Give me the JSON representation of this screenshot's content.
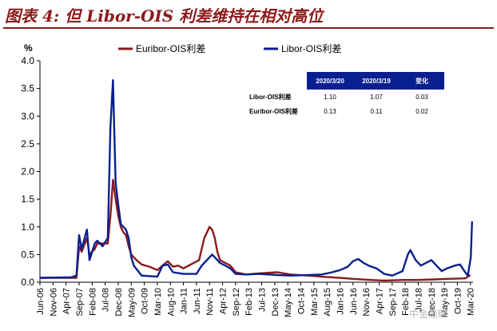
{
  "header": {
    "title": "图表 4:  但 Libor-OIS 利差维持在相对高位"
  },
  "watermark": "中金策略",
  "table": {
    "headers": [
      "",
      "2020/3/20",
      "2020/3/19",
      "变化"
    ],
    "rows": [
      {
        "label": "Libor-OIS利差",
        "values": [
          "1.10",
          "1.07",
          "0.03"
        ]
      },
      {
        "label": "Euribor-OIS利差",
        "values": [
          "0.13",
          "0.11",
          "0.02"
        ]
      }
    ]
  },
  "chart_data": {
    "type": "line",
    "unit_label": "%",
    "ylim": [
      0,
      4
    ],
    "yticks": [
      "0.0",
      "0.5",
      "1.0",
      "1.5",
      "2.0",
      "2.5",
      "3.0",
      "3.5",
      "4.0"
    ],
    "xticks": [
      "Jun-06",
      "Nov-06",
      "Apr-07",
      "Sep-07",
      "Feb-08",
      "Jul-08",
      "Dec-08",
      "May-09",
      "Oct-09",
      "Mar-10",
      "Aug-10",
      "Jan-11",
      "Jun-11",
      "Nov-11",
      "Apr-12",
      "Sep-12",
      "Feb-13",
      "Jul-13",
      "Dec-13",
      "May-14",
      "Oct-14",
      "Mar-15",
      "Aug-15",
      "Jan-16",
      "Jun-16",
      "Nov-16",
      "Apr-17",
      "Sep-17",
      "Feb-18",
      "Jul-18",
      "Dec-18",
      "May-19",
      "Oct-19",
      "Mar-20"
    ],
    "legend_position": "top",
    "grid": false,
    "series": [
      {
        "name": "Euribor-OIS利差",
        "color": "#8b1a1a",
        "points": [
          [
            "2006-06",
            0.08
          ],
          [
            "2007-06",
            0.08
          ],
          [
            "2007-08",
            0.08
          ],
          [
            "2007-09",
            0.65
          ],
          [
            "2007-10",
            0.55
          ],
          [
            "2007-12",
            0.8
          ],
          [
            "2008-01",
            0.5
          ],
          [
            "2008-03",
            0.6
          ],
          [
            "2008-04",
            0.7
          ],
          [
            "2008-06",
            0.7
          ],
          [
            "2008-08",
            0.7
          ],
          [
            "2008-09",
            1.2
          ],
          [
            "2008-10",
            1.85
          ],
          [
            "2008-11",
            1.5
          ],
          [
            "2008-12",
            1.2
          ],
          [
            "2009-01",
            1.0
          ],
          [
            "2009-02",
            0.9
          ],
          [
            "2009-03",
            0.85
          ],
          [
            "2009-04",
            0.65
          ],
          [
            "2009-05",
            0.5
          ],
          [
            "2009-07",
            0.4
          ],
          [
            "2009-09",
            0.32
          ],
          [
            "2009-12",
            0.28
          ],
          [
            "2010-03",
            0.22
          ],
          [
            "2010-05",
            0.3
          ],
          [
            "2010-07",
            0.38
          ],
          [
            "2010-09",
            0.28
          ],
          [
            "2010-11",
            0.3
          ],
          [
            "2011-01",
            0.25
          ],
          [
            "2011-03",
            0.3
          ],
          [
            "2011-05",
            0.35
          ],
          [
            "2011-07",
            0.4
          ],
          [
            "2011-08",
            0.6
          ],
          [
            "2011-09",
            0.8
          ],
          [
            "2011-10",
            0.9
          ],
          [
            "2011-11",
            1.0
          ],
          [
            "2011-12",
            0.95
          ],
          [
            "2012-01",
            0.8
          ],
          [
            "2012-02",
            0.55
          ],
          [
            "2012-03",
            0.4
          ],
          [
            "2012-05",
            0.35
          ],
          [
            "2012-07",
            0.3
          ],
          [
            "2012-09",
            0.18
          ],
          [
            "2013-01",
            0.14
          ],
          [
            "2013-06",
            0.16
          ],
          [
            "2014-01",
            0.18
          ],
          [
            "2014-06",
            0.14
          ],
          [
            "2015-01",
            0.12
          ],
          [
            "2015-06",
            0.1
          ],
          [
            "2016-01",
            0.08
          ],
          [
            "2016-06",
            0.06
          ],
          [
            "2017-01",
            0.04
          ],
          [
            "2017-06",
            0.03
          ],
          [
            "2018-01",
            0.04
          ],
          [
            "2018-06",
            0.04
          ],
          [
            "2019-01",
            0.05
          ],
          [
            "2019-06",
            0.06
          ],
          [
            "2020-01",
            0.07
          ],
          [
            "2020-03",
            0.13
          ]
        ]
      },
      {
        "name": "Libor-OIS利差",
        "color": "#0a1f8f",
        "points": [
          [
            "2006-06",
            0.08
          ],
          [
            "2007-06",
            0.09
          ],
          [
            "2007-08",
            0.12
          ],
          [
            "2007-09",
            0.85
          ],
          [
            "2007-10",
            0.6
          ],
          [
            "2007-12",
            0.95
          ],
          [
            "2008-01",
            0.4
          ],
          [
            "2008-03",
            0.7
          ],
          [
            "2008-04",
            0.75
          ],
          [
            "2008-06",
            0.65
          ],
          [
            "2008-08",
            0.8
          ],
          [
            "2008-09",
            2.8
          ],
          [
            "2008-10",
            3.65
          ],
          [
            "2008-11",
            1.8
          ],
          [
            "2008-12",
            1.4
          ],
          [
            "2009-01",
            1.05
          ],
          [
            "2009-02",
            1.0
          ],
          [
            "2009-03",
            0.95
          ],
          [
            "2009-04",
            0.8
          ],
          [
            "2009-05",
            0.45
          ],
          [
            "2009-06",
            0.3
          ],
          [
            "2009-09",
            0.12
          ],
          [
            "2010-03",
            0.1
          ],
          [
            "2010-05",
            0.3
          ],
          [
            "2010-07",
            0.32
          ],
          [
            "2010-09",
            0.18
          ],
          [
            "2011-01",
            0.15
          ],
          [
            "2011-06",
            0.15
          ],
          [
            "2011-08",
            0.3
          ],
          [
            "2011-10",
            0.4
          ],
          [
            "2011-12",
            0.5
          ],
          [
            "2012-01",
            0.45
          ],
          [
            "2012-03",
            0.35
          ],
          [
            "2012-05",
            0.3
          ],
          [
            "2012-07",
            0.25
          ],
          [
            "2012-09",
            0.15
          ],
          [
            "2013-01",
            0.14
          ],
          [
            "2013-06",
            0.15
          ],
          [
            "2014-01",
            0.13
          ],
          [
            "2014-06",
            0.12
          ],
          [
            "2015-01",
            0.13
          ],
          [
            "2015-06",
            0.14
          ],
          [
            "2015-10",
            0.18
          ],
          [
            "2016-01",
            0.22
          ],
          [
            "2016-04",
            0.28
          ],
          [
            "2016-06",
            0.38
          ],
          [
            "2016-08",
            0.42
          ],
          [
            "2016-10",
            0.35
          ],
          [
            "2016-12",
            0.3
          ],
          [
            "2017-03",
            0.25
          ],
          [
            "2017-06",
            0.15
          ],
          [
            "2017-09",
            0.12
          ],
          [
            "2018-01",
            0.2
          ],
          [
            "2018-03",
            0.5
          ],
          [
            "2018-04",
            0.58
          ],
          [
            "2018-06",
            0.4
          ],
          [
            "2018-08",
            0.3
          ],
          [
            "2018-10",
            0.35
          ],
          [
            "2018-12",
            0.4
          ],
          [
            "2019-02",
            0.3
          ],
          [
            "2019-04",
            0.2
          ],
          [
            "2019-06",
            0.25
          ],
          [
            "2019-09",
            0.3
          ],
          [
            "2019-11",
            0.32
          ],
          [
            "2020-01",
            0.18
          ],
          [
            "2020-02",
            0.12
          ],
          [
            "2020-03-05",
            0.45
          ],
          [
            "2020-03-20",
            1.1
          ]
        ]
      }
    ]
  }
}
